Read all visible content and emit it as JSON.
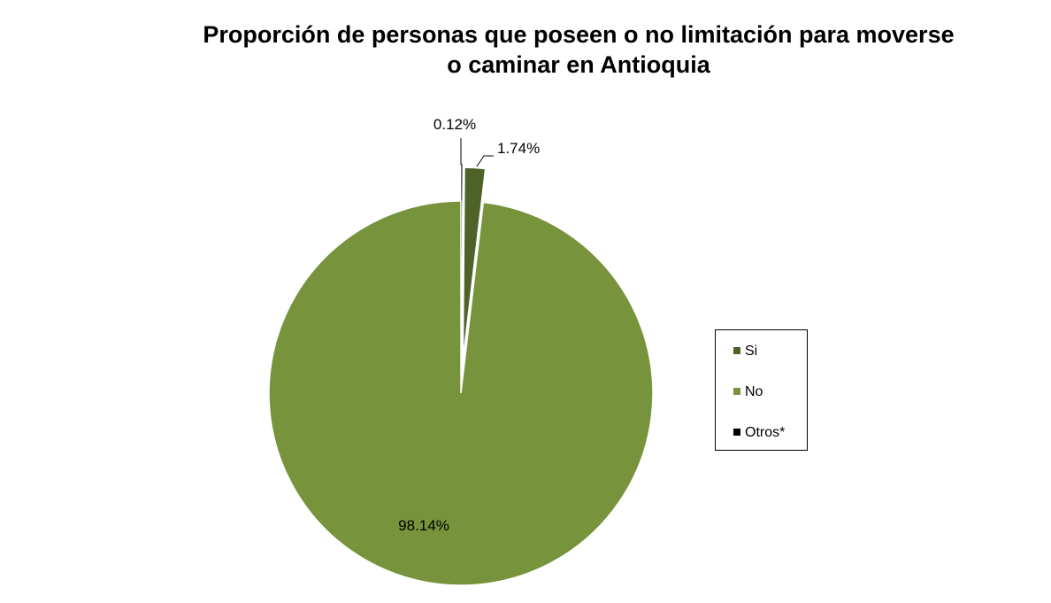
{
  "chart_data": {
    "type": "pie",
    "title_lines": [
      "Proporción de personas que poseen o no limitación para moverse",
      "o caminar en Antioquia"
    ],
    "slices": [
      {
        "name": "Si",
        "value": 1.74,
        "label": "1.74%",
        "color": "#4f6228"
      },
      {
        "name": "No",
        "value": 98.14,
        "label": "98.14%",
        "color": "#77933c"
      },
      {
        "name": "Otros*",
        "value": 0.12,
        "label": "0.12%",
        "color": "#000000"
      }
    ],
    "legend_position": "right",
    "start_angle": "12 o'clock, clockwise",
    "exploded_slices": [
      "Si",
      "Otros*"
    ]
  }
}
